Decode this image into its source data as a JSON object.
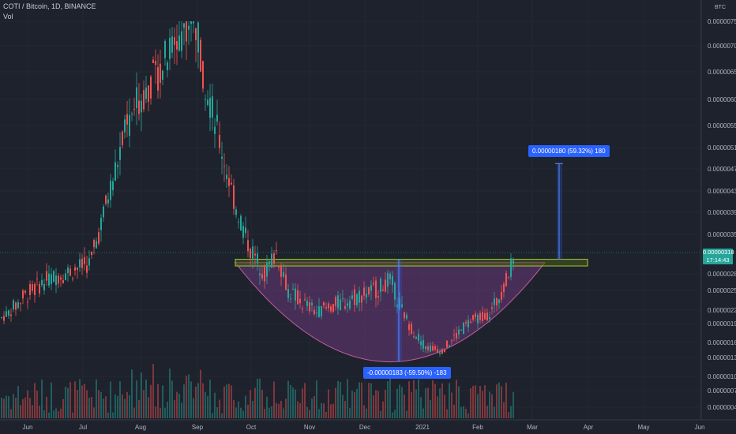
{
  "header": {
    "title": "COTI / Bitcoin, 1D, BINANCE",
    "volume_label": "Vol",
    "currency": "BTC"
  },
  "colors": {
    "background": "#1e222d",
    "up": "#26a69a",
    "down": "#ef5350",
    "grid": "#2a2e39",
    "cup_fill": "#7b3f8c",
    "resistance_border": "#9acd32",
    "annotation_bg": "#2962ff",
    "price_line": "#26a69a"
  },
  "price_tag": {
    "price": "0.00000318",
    "timer": "17:14:43"
  },
  "annotations": {
    "cup_depth": "-0.00000183 (-59.50%) -183",
    "target": "0.00000180 (59.32%) 180"
  },
  "chart_data": {
    "type": "candlestick",
    "y_axis_labels": [
      "0.00000750",
      "0.00000700",
      "0.00000650",
      "0.00000600",
      "0.00000550",
      "0.00000510",
      "0.00000470",
      "0.00000430",
      "0.00000390",
      "0.00000350",
      "0.00000318",
      "0.00000280",
      "0.00000250",
      "0.00000220",
      "0.00000190",
      "0.00000160",
      "0.00000130",
      "0.00000100",
      "0.00000070",
      "0.00000044"
    ],
    "x_axis_labels": [
      "Jun",
      "Jul",
      "Aug",
      "Sep",
      "Oct",
      "Nov",
      "Dec",
      "2021",
      "Feb",
      "Mar",
      "Apr",
      "May",
      "Jun"
    ],
    "resistance_zone": [
      2.94e-06,
      3.06e-06
    ],
    "cup_low": 1.23e-06,
    "target_high": 4.8e-06,
    "last_price": 3.18e-06
  }
}
